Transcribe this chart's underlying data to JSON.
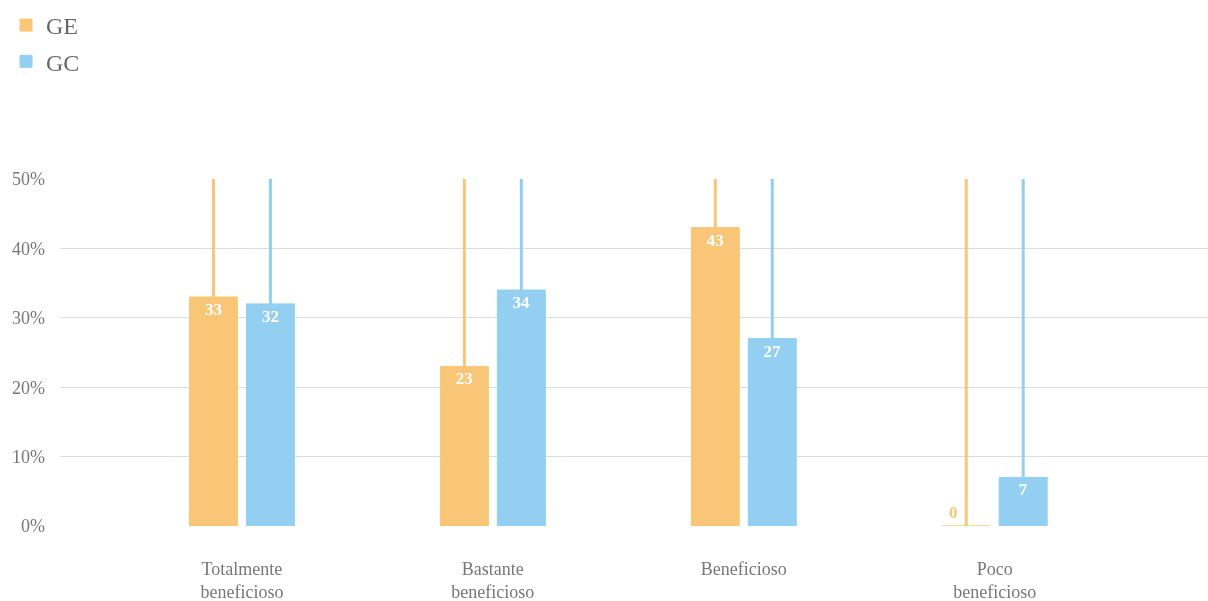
{
  "chart_data": {
    "type": "bar",
    "categories": [
      "Totalmente beneficioso",
      "Bastante beneficioso",
      "Beneficioso",
      "Poco beneficioso"
    ],
    "series": [
      {
        "name": "GE",
        "color": "#f9c677",
        "values": [
          33,
          23,
          43,
          0
        ],
        "errors": [
          [
            33,
            50
          ],
          [
            23,
            50
          ],
          [
            43,
            50
          ],
          [
            0,
            50
          ]
        ]
      },
      {
        "name": "GC",
        "color": "#92cff1",
        "values": [
          32,
          34,
          27,
          7
        ],
        "errors": [
          [
            32,
            50
          ],
          [
            34,
            50
          ],
          [
            27,
            50
          ],
          [
            7,
            50
          ]
        ]
      }
    ],
    "ylim": [
      0,
      50
    ],
    "yticks": [
      {
        "value": 0,
        "label": "0%"
      },
      {
        "value": 10,
        "label": "10%"
      },
      {
        "value": 20,
        "label": "20%"
      },
      {
        "value": 30,
        "label": "30%"
      },
      {
        "value": 40,
        "label": "40%"
      },
      {
        "value": 50,
        "label": "50%"
      }
    ],
    "grid": "y",
    "legend": "top left",
    "data_labels": true
  }
}
